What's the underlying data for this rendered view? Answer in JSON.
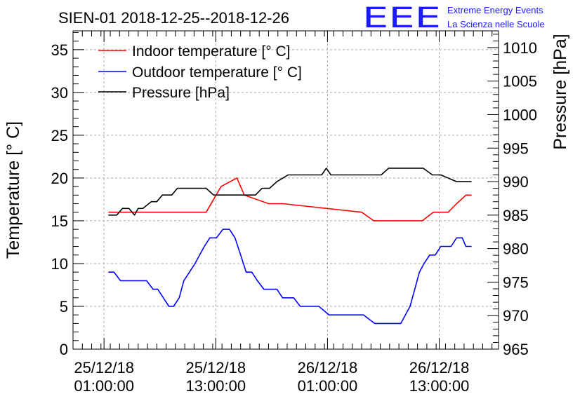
{
  "title": "SIEN-01 2018-12-25--2018-12-26",
  "logo": {
    "mark": "EEE",
    "line1": "Extreme Energy Events",
    "line2": "La Scienza nelle Scuole",
    "color": "#1a1aff"
  },
  "chart_data": {
    "type": "line",
    "title": "SIEN-01 2018-12-25--2018-12-26",
    "xlabel": "",
    "ylabel": "Temperature [° C]",
    "y2label": "Pressure [hPa]",
    "grid": true,
    "legend_position": "top-left",
    "x_unit": "hours since 2018-12-24 21:40",
    "xlim": [
      0,
      45.7
    ],
    "ylim": [
      0,
      37.2
    ],
    "y2lim": [
      965,
      1012.5
    ],
    "y_ticks": [
      0,
      5,
      10,
      15,
      20,
      25,
      30,
      35
    ],
    "y2_ticks": [
      965,
      970,
      975,
      980,
      985,
      990,
      995,
      1000,
      1005,
      1010
    ],
    "x_ticks": [
      {
        "x": 3.33,
        "line1": "25/12/18",
        "line2": "01:00:00"
      },
      {
        "x": 15.33,
        "line1": "25/12/18",
        "line2": "13:00:00"
      },
      {
        "x": 27.33,
        "line1": "26/12/18",
        "line2": "01:00:00"
      },
      {
        "x": 39.33,
        "line1": "26/12/18",
        "line2": "13:00:00"
      }
    ],
    "series": [
      {
        "name": "Indoor temperature [° C]",
        "axis": "left",
        "color": "#ff0000",
        "x": [
          3.8,
          12.0,
          14.3,
          15.9,
          17.6,
          18.4,
          21.0,
          22.5,
          31.0,
          32.3,
          37.5,
          38.7,
          39.8,
          40.3,
          41.2,
          42.2,
          42.8
        ],
        "y": [
          16,
          16,
          16,
          19,
          20,
          18,
          17,
          17,
          16,
          15,
          15,
          16,
          16,
          16,
          17,
          18,
          18
        ]
      },
      {
        "name": "Outdoor temperature [° C]",
        "axis": "left",
        "color": "#0000ff",
        "x": [
          3.8,
          4.4,
          5.1,
          6.4,
          7.9,
          8.6,
          9.1,
          9.7,
          10.3,
          10.8,
          11.4,
          11.9,
          12.5,
          13.1,
          13.6,
          14.1,
          14.7,
          15.4,
          16.1,
          16.8,
          17.4,
          18.0,
          18.6,
          19.2,
          19.8,
          20.5,
          21.2,
          21.9,
          22.5,
          23.1,
          23.7,
          24.4,
          25.0,
          25.6,
          26.4,
          27.5,
          28.6,
          29.8,
          31.2,
          32.4,
          33.6,
          35.2,
          35.7,
          36.2,
          36.7,
          37.2,
          37.7,
          38.3,
          38.9,
          39.5,
          40.1,
          40.6,
          41.2,
          41.8,
          42.2,
          42.8
        ],
        "y": [
          9,
          9,
          8,
          8,
          8,
          7,
          7,
          6,
          5,
          5,
          6,
          8,
          9,
          10,
          11,
          12,
          13,
          13,
          14,
          14,
          13,
          11,
          9,
          9,
          8,
          7,
          7,
          7,
          6,
          6,
          6,
          5,
          5,
          5,
          5,
          4,
          4,
          4,
          4,
          3,
          3,
          3,
          4,
          5,
          7,
          9,
          10,
          11,
          11,
          12,
          12,
          12,
          13,
          13,
          12,
          12
        ]
      },
      {
        "name": "Pressure [hPa]",
        "axis": "right",
        "color": "#000000",
        "x": [
          3.8,
          4.7,
          5.3,
          6.0,
          6.6,
          7.0,
          7.5,
          8.4,
          9.0,
          9.6,
          10.6,
          11.2,
          11.9,
          13.2,
          14.3,
          15.1,
          15.9,
          17.2,
          18.5,
          19.6,
          20.3,
          21.1,
          21.9,
          23.1,
          25.0,
          26.7,
          27.2,
          27.7,
          28.6,
          32.7,
          33.1,
          33.9,
          36.1,
          36.9,
          37.6,
          38.6,
          39.5,
          41.2,
          41.8,
          42.4,
          42.8
        ],
        "y": [
          985,
          985,
          986,
          986,
          985,
          986,
          986,
          987,
          987,
          988,
          988,
          989,
          989,
          989,
          989,
          988,
          988,
          988,
          988,
          988,
          989,
          989,
          990,
          991,
          991,
          991,
          992,
          991,
          991,
          991,
          991,
          992,
          992,
          992,
          992,
          991,
          991,
          990,
          990,
          990,
          990
        ]
      }
    ]
  }
}
